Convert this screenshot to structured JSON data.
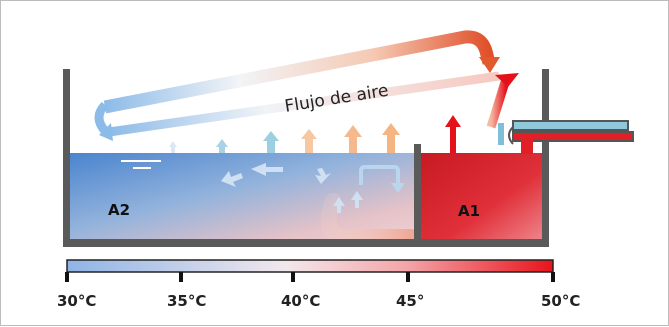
{
  "diagram": {
    "airflow_label": "Flujo de aire",
    "zone_left_label": "A2",
    "zone_right_label": "A1",
    "scale": {
      "tick_labels": [
        "30°C",
        "35°C",
        "40°C",
        "45°",
        "50°C"
      ],
      "colors": {
        "cold": "#8fb4e6",
        "mid": "#ffffff",
        "hot": "#e8141b"
      }
    },
    "colors": {
      "wall": "#555555",
      "water_cold": "#4d86cf",
      "water_hot": "#d8222b",
      "arrow_blue": "#8ec6e2",
      "arrow_orange": "#f4b07a",
      "arrow_red": "#e5111a"
    }
  }
}
